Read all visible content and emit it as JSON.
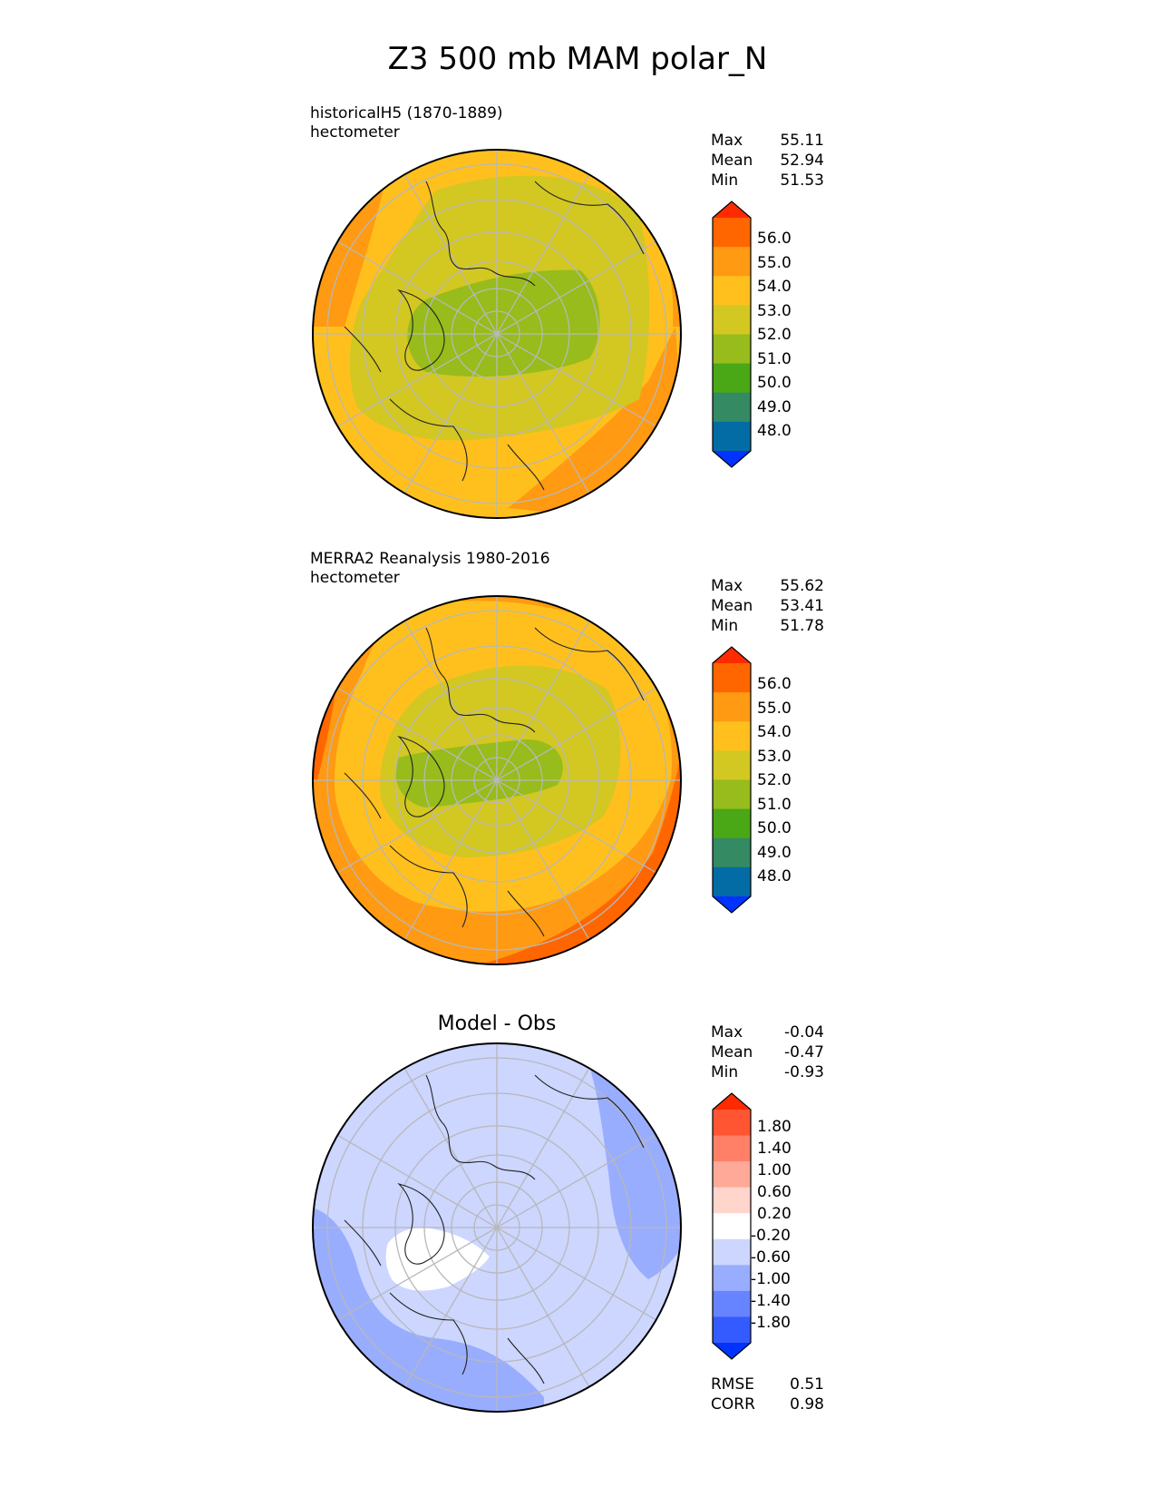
{
  "title": "Z3 500 mb MAM polar_N",
  "chart_data": [
    {
      "type": "heatmap",
      "projection": "north-polar-stereographic",
      "title": "",
      "caption_lines": [
        "historicalH5 (1870-1889)",
        "hectometer"
      ],
      "stats": [
        {
          "label": "Max",
          "value": "55.11"
        },
        {
          "label": "Mean",
          "value": "52.94"
        },
        {
          "label": "Min",
          "value": "51.53"
        }
      ],
      "colorbar": {
        "tick_labels": [
          "56.0",
          "55.0",
          "54.0",
          "53.0",
          "52.0",
          "51.0",
          "50.0",
          "49.0",
          "48.0"
        ],
        "colors": [
          "#ff2a00",
          "#ff6600",
          "#ff9a12",
          "#ffc01e",
          "#d3c722",
          "#97bc1b",
          "#4aa816",
          "#348a63",
          "#036ca5",
          "#0033ff"
        ],
        "extend": "both"
      },
      "field_levels": [
        {
          "value": 53.5,
          "color": "#ff9a12"
        },
        {
          "value": 53.0,
          "color": "#ffc01e"
        },
        {
          "value": 52.5,
          "color": "#d3c722"
        },
        {
          "value": 51.5,
          "color": "#97bc1b"
        }
      ],
      "footer_stats": []
    },
    {
      "type": "heatmap",
      "projection": "north-polar-stereographic",
      "title": "",
      "caption_lines": [
        "MERRA2 Reanalysis 1980-2016",
        "hectometer"
      ],
      "stats": [
        {
          "label": "Max",
          "value": "55.62"
        },
        {
          "label": "Mean",
          "value": "53.41"
        },
        {
          "label": "Min",
          "value": "51.78"
        }
      ],
      "colorbar": {
        "tick_labels": [
          "56.0",
          "55.0",
          "54.0",
          "53.0",
          "52.0",
          "51.0",
          "50.0",
          "49.0",
          "48.0"
        ],
        "colors": [
          "#ff2a00",
          "#ff6600",
          "#ff9a12",
          "#ffc01e",
          "#d3c722",
          "#97bc1b",
          "#4aa816",
          "#348a63",
          "#036ca5",
          "#0033ff"
        ],
        "extend": "both"
      },
      "field_levels": [
        {
          "value": 55.0,
          "color": "#ff6600"
        },
        {
          "value": 54.5,
          "color": "#ff9a12"
        },
        {
          "value": 53.5,
          "color": "#ffc01e"
        },
        {
          "value": 52.5,
          "color": "#d3c722"
        },
        {
          "value": 52.0,
          "color": "#97bc1b"
        }
      ],
      "footer_stats": []
    },
    {
      "type": "heatmap",
      "projection": "north-polar-stereographic",
      "title": "Model - Obs",
      "caption_lines": [],
      "stats": [
        {
          "label": "Max",
          "value": "-0.04"
        },
        {
          "label": "Mean",
          "value": "-0.47"
        },
        {
          "label": "Min",
          "value": "-0.93"
        }
      ],
      "colorbar": {
        "tick_labels": [
          "1.80",
          "1.40",
          "1.00",
          "0.60",
          "0.20",
          "-0.20",
          "-0.60",
          "-1.00",
          "-1.40",
          "-1.80"
        ],
        "colors": [
          "#ff2a00",
          "#ff5533",
          "#ff8066",
          "#ffaa99",
          "#ffd5cc",
          "#ffffff",
          "#ccd6ff",
          "#99adff",
          "#6684ff",
          "#335bff",
          "#0033ff"
        ],
        "extend": "both"
      },
      "field_levels": [
        {
          "value": -0.4,
          "color": "#ccd6ff"
        },
        {
          "value": -0.7,
          "color": "#99adff"
        },
        {
          "value": 0.0,
          "color": "#ffffff"
        }
      ],
      "footer_stats": [
        {
          "label": "RMSE",
          "value": "0.51"
        },
        {
          "label": "CORR",
          "value": "0.98"
        }
      ]
    }
  ]
}
